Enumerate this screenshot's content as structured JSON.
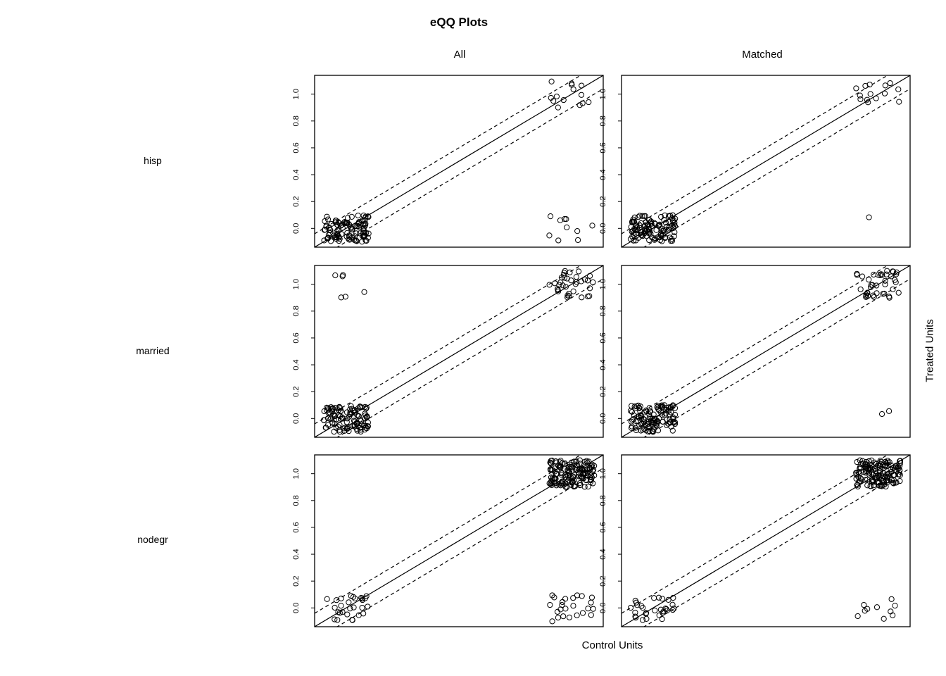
{
  "title": "eQQ Plots",
  "column_labels": [
    "All",
    "Matched"
  ],
  "row_labels": [
    "hisp",
    "married",
    "nodegr"
  ],
  "xlabel": "Control Units",
  "ylabel": "Treated Units",
  "chart_data": {
    "type": "scatter",
    "title": "eQQ Plots",
    "xlabel": "Control Units",
    "ylabel": "Treated Units",
    "columns": [
      "All",
      "Matched"
    ],
    "rows": [
      "hisp",
      "married",
      "nodegr"
    ],
    "yticks": [
      "0.0",
      "0.2",
      "0.4",
      "0.6",
      "0.8",
      "1.0"
    ],
    "ylim": [
      -0.14,
      1.14
    ],
    "xlim": [
      -0.14,
      1.14
    ],
    "reference_lines": {
      "solid": "y = x",
      "dashed_offsets": [
        0.1,
        -0.1
      ]
    },
    "panels": [
      {
        "row": "hisp",
        "column": "All",
        "groups": [
          {
            "x_range": [
              -0.1,
              0.1
            ],
            "y_range": [
              -0.1,
              0.1
            ],
            "n": 110
          },
          {
            "x_range": [
              0.9,
              1.1
            ],
            "y_range": [
              0.9,
              1.1
            ],
            "n": 14
          },
          {
            "x_range": [
              0.9,
              1.1
            ],
            "y_range": [
              -0.1,
              0.1
            ],
            "n": 10
          }
        ]
      },
      {
        "row": "hisp",
        "column": "Matched",
        "groups": [
          {
            "x_range": [
              -0.1,
              0.1
            ],
            "y_range": [
              -0.1,
              0.1
            ],
            "n": 120
          },
          {
            "x_range": [
              0.9,
              1.1
            ],
            "y_range": [
              0.9,
              1.1
            ],
            "n": 14
          },
          {
            "x_range": [
              0.9,
              1.1
            ],
            "y_range": [
              -0.1,
              0.1
            ],
            "n": 1
          }
        ]
      },
      {
        "row": "married",
        "column": "All",
        "groups": [
          {
            "x_range": [
              -0.1,
              0.1
            ],
            "y_range": [
              -0.1,
              0.1
            ],
            "n": 110
          },
          {
            "x_range": [
              -0.1,
              0.1
            ],
            "y_range": [
              0.9,
              1.1
            ],
            "n": 6
          },
          {
            "x_range": [
              0.9,
              1.1
            ],
            "y_range": [
              0.9,
              1.1
            ],
            "n": 35
          }
        ]
      },
      {
        "row": "married",
        "column": "Matched",
        "groups": [
          {
            "x_range": [
              -0.1,
              0.1
            ],
            "y_range": [
              -0.1,
              0.1
            ],
            "n": 120
          },
          {
            "x_range": [
              0.9,
              1.1
            ],
            "y_range": [
              0.9,
              1.1
            ],
            "n": 40
          },
          {
            "x_range": [
              0.9,
              1.1
            ],
            "y_range": [
              -0.1,
              0.1
            ],
            "n": 2
          }
        ]
      },
      {
        "row": "nodegr",
        "column": "All",
        "groups": [
          {
            "x_range": [
              -0.1,
              0.1
            ],
            "y_range": [
              -0.1,
              0.1
            ],
            "n": 28
          },
          {
            "x_range": [
              0.9,
              1.1
            ],
            "y_range": [
              0.9,
              1.1
            ],
            "n": 150
          },
          {
            "x_range": [
              0.9,
              1.1
            ],
            "y_range": [
              -0.1,
              0.1
            ],
            "n": 24
          }
        ]
      },
      {
        "row": "nodegr",
        "column": "Matched",
        "groups": [
          {
            "x_range": [
              -0.1,
              0.1
            ],
            "y_range": [
              -0.1,
              0.1
            ],
            "n": 30
          },
          {
            "x_range": [
              0.9,
              1.1
            ],
            "y_range": [
              0.9,
              1.1
            ],
            "n": 150
          },
          {
            "x_range": [
              0.9,
              1.1
            ],
            "y_range": [
              -0.1,
              0.1
            ],
            "n": 10
          }
        ]
      }
    ]
  }
}
